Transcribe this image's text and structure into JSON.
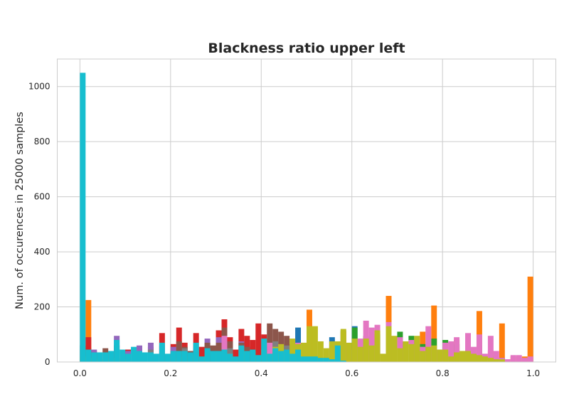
{
  "chart_data": {
    "type": "bar",
    "title": "Blackness ratio upper left",
    "xlabel": "",
    "ylabel": "Num. of occurences in 25000 samples",
    "xlim": [
      -0.05,
      1.05
    ],
    "ylim": [
      0,
      1100
    ],
    "xticks": [
      0.0,
      0.2,
      0.4,
      0.6,
      0.8,
      1.0
    ],
    "xtick_labels": [
      "0.0",
      "0.2",
      "0.4",
      "0.6",
      "0.8",
      "1.0"
    ],
    "yticks": [
      0,
      200,
      400,
      600,
      800,
      1000
    ],
    "ytick_labels": [
      "0",
      "200",
      "400",
      "600",
      "800",
      "1000"
    ],
    "grid": true,
    "style": "whitegrid",
    "bin_width": 0.0125,
    "series": [
      {
        "color": "#1f77b4",
        "x": [
          0.0,
          0.0125,
          0.025,
          0.1,
          0.2,
          0.275,
          0.35,
          0.45,
          0.475,
          0.5,
          0.55,
          0.575,
          0.6,
          0.625,
          0.65,
          0.675
        ],
        "values": [
          60,
          50,
          40,
          45,
          40,
          50,
          45,
          60,
          125,
          140,
          90,
          115,
          130,
          90,
          100,
          80
        ]
      },
      {
        "color": "#ff7f0e",
        "x": [
          0.0125,
          0.5,
          0.575,
          0.675,
          0.75,
          0.775,
          0.8,
          0.825,
          0.875,
          0.9,
          0.925,
          0.95,
          0.975,
          0.9875
        ],
        "values": [
          225,
          190,
          110,
          240,
          110,
          205,
          40,
          80,
          185,
          40,
          140,
          20,
          20,
          310
        ]
      },
      {
        "color": "#2ca02c",
        "x": [
          0.6,
          0.625,
          0.675,
          0.7,
          0.725,
          0.75,
          0.775,
          0.8,
          0.825,
          0.85,
          0.875,
          0.9,
          0.925
        ],
        "values": [
          125,
          95,
          95,
          110,
          95,
          65,
          85,
          80,
          65,
          25,
          60,
          20,
          15
        ]
      },
      {
        "color": "#d62728",
        "x": [
          0.0125,
          0.1,
          0.15,
          0.175,
          0.2,
          0.2125,
          0.225,
          0.25,
          0.2625,
          0.3,
          0.3125,
          0.325,
          0.3375,
          0.35,
          0.3625,
          0.375,
          0.3875,
          0.4
        ],
        "values": [
          90,
          45,
          55,
          105,
          65,
          125,
          70,
          105,
          55,
          115,
          155,
          90,
          45,
          120,
          95,
          80,
          140,
          100
        ]
      },
      {
        "color": "#9467bd",
        "x": [
          0.025,
          0.075,
          0.1,
          0.125,
          0.15,
          0.175,
          0.2,
          0.225,
          0.25,
          0.275,
          0.3,
          0.325,
          0.35
        ],
        "values": [
          45,
          95,
          40,
          60,
          70,
          60,
          55,
          35,
          50,
          85,
          90,
          60,
          75
        ]
      },
      {
        "color": "#8c564b",
        "x": [
          0.0125,
          0.025,
          0.05,
          0.0625,
          0.075,
          0.2125,
          0.225,
          0.2375,
          0.25,
          0.275,
          0.2875,
          0.3,
          0.3125,
          0.325,
          0.35,
          0.3625,
          0.375,
          0.3875,
          0.4,
          0.4125,
          0.425,
          0.4375,
          0.45,
          0.4625
        ],
        "values": [
          40,
          35,
          50,
          40,
          60,
          75,
          55,
          40,
          35,
          70,
          60,
          70,
          125,
          75,
          70,
          55,
          45,
          25,
          55,
          140,
          120,
          110,
          95,
          65
        ]
      },
      {
        "color": "#e377c2",
        "x": [
          0.3125,
          0.4125,
          0.475,
          0.55,
          0.5875,
          0.6125,
          0.625,
          0.6375,
          0.65,
          0.675,
          0.7,
          0.725,
          0.75,
          0.7625,
          0.775,
          0.7875,
          0.8,
          0.8125,
          0.825,
          0.8375,
          0.85,
          0.8625,
          0.875,
          0.8875,
          0.9,
          0.9125,
          0.925,
          0.9375,
          0.95,
          0.9625,
          0.975,
          0.9875
        ],
        "values": [
          95,
          70,
          70,
          55,
          45,
          85,
          150,
          125,
          135,
          145,
          90,
          80,
          55,
          130,
          55,
          45,
          70,
          75,
          90,
          35,
          105,
          55,
          100,
          30,
          95,
          40,
          15,
          10,
          25,
          25,
          15,
          20
        ]
      },
      {
        "color": "#7f7f7f",
        "x": [
          0.0,
          0.025,
          0.125,
          0.15,
          0.175,
          0.2,
          0.225,
          0.25,
          0.275,
          0.3,
          0.325,
          0.35,
          0.375,
          0.4,
          0.425,
          0.45,
          0.475
        ],
        "values": [
          45,
          30,
          30,
          45,
          35,
          40,
          50,
          45,
          35,
          40,
          50,
          45,
          40,
          45,
          75,
          60,
          45
        ]
      },
      {
        "color": "#bcbd22",
        "x": [
          0.0,
          0.0125,
          0.025,
          0.0375,
          0.05,
          0.0625,
          0.075,
          0.0875,
          0.1,
          0.2,
          0.225,
          0.25,
          0.275,
          0.3,
          0.325,
          0.35,
          0.375,
          0.4,
          0.425,
          0.4375,
          0.45,
          0.4625,
          0.475,
          0.4875,
          0.5,
          0.5125,
          0.525,
          0.5375,
          0.55,
          0.5625,
          0.575,
          0.5875,
          0.6,
          0.6125,
          0.625,
          0.6375,
          0.65,
          0.6625,
          0.675,
          0.6875,
          0.7,
          0.7125,
          0.725,
          0.7375,
          0.75,
          0.7625,
          0.775,
          0.7875,
          0.8,
          0.8125,
          0.825,
          0.8375,
          0.85,
          0.8625,
          0.875,
          0.8875,
          0.9,
          0.9125,
          0.925
        ],
        "values": [
          20,
          15,
          10,
          10,
          10,
          10,
          15,
          10,
          10,
          15,
          20,
          25,
          30,
          35,
          30,
          40,
          40,
          45,
          55,
          65,
          40,
          85,
          65,
          70,
          130,
          130,
          75,
          50,
          75,
          75,
          120,
          70,
          85,
          55,
          85,
          60,
          115,
          30,
          130,
          95,
          50,
          75,
          65,
          95,
          40,
          55,
          60,
          45,
          45,
          20,
          35,
          40,
          40,
          30,
          25,
          20,
          15,
          10,
          10
        ]
      },
      {
        "color": "#17becf",
        "x": [
          0.0,
          0.0125,
          0.025,
          0.0375,
          0.05,
          0.0625,
          0.075,
          0.0875,
          0.1,
          0.1125,
          0.125,
          0.1375,
          0.15,
          0.1625,
          0.175,
          0.1875,
          0.2,
          0.2125,
          0.225,
          0.2375,
          0.25,
          0.2625,
          0.275,
          0.2875,
          0.3,
          0.3125,
          0.325,
          0.3375,
          0.35,
          0.3625,
          0.375,
          0.3875,
          0.4,
          0.4125,
          0.425,
          0.4375,
          0.45,
          0.4625,
          0.475,
          0.4875,
          0.5,
          0.5125,
          0.525,
          0.5375,
          0.55,
          0.5625,
          0.575
        ],
        "values": [
          1050,
          45,
          35,
          35,
          35,
          40,
          80,
          45,
          30,
          55,
          40,
          35,
          35,
          30,
          70,
          30,
          40,
          40,
          40,
          35,
          70,
          20,
          50,
          40,
          40,
          45,
          30,
          20,
          60,
          40,
          45,
          25,
          85,
          30,
          50,
          40,
          45,
          30,
          45,
          20,
          20,
          20,
          15,
          15,
          10,
          60,
          5
        ]
      }
    ]
  }
}
